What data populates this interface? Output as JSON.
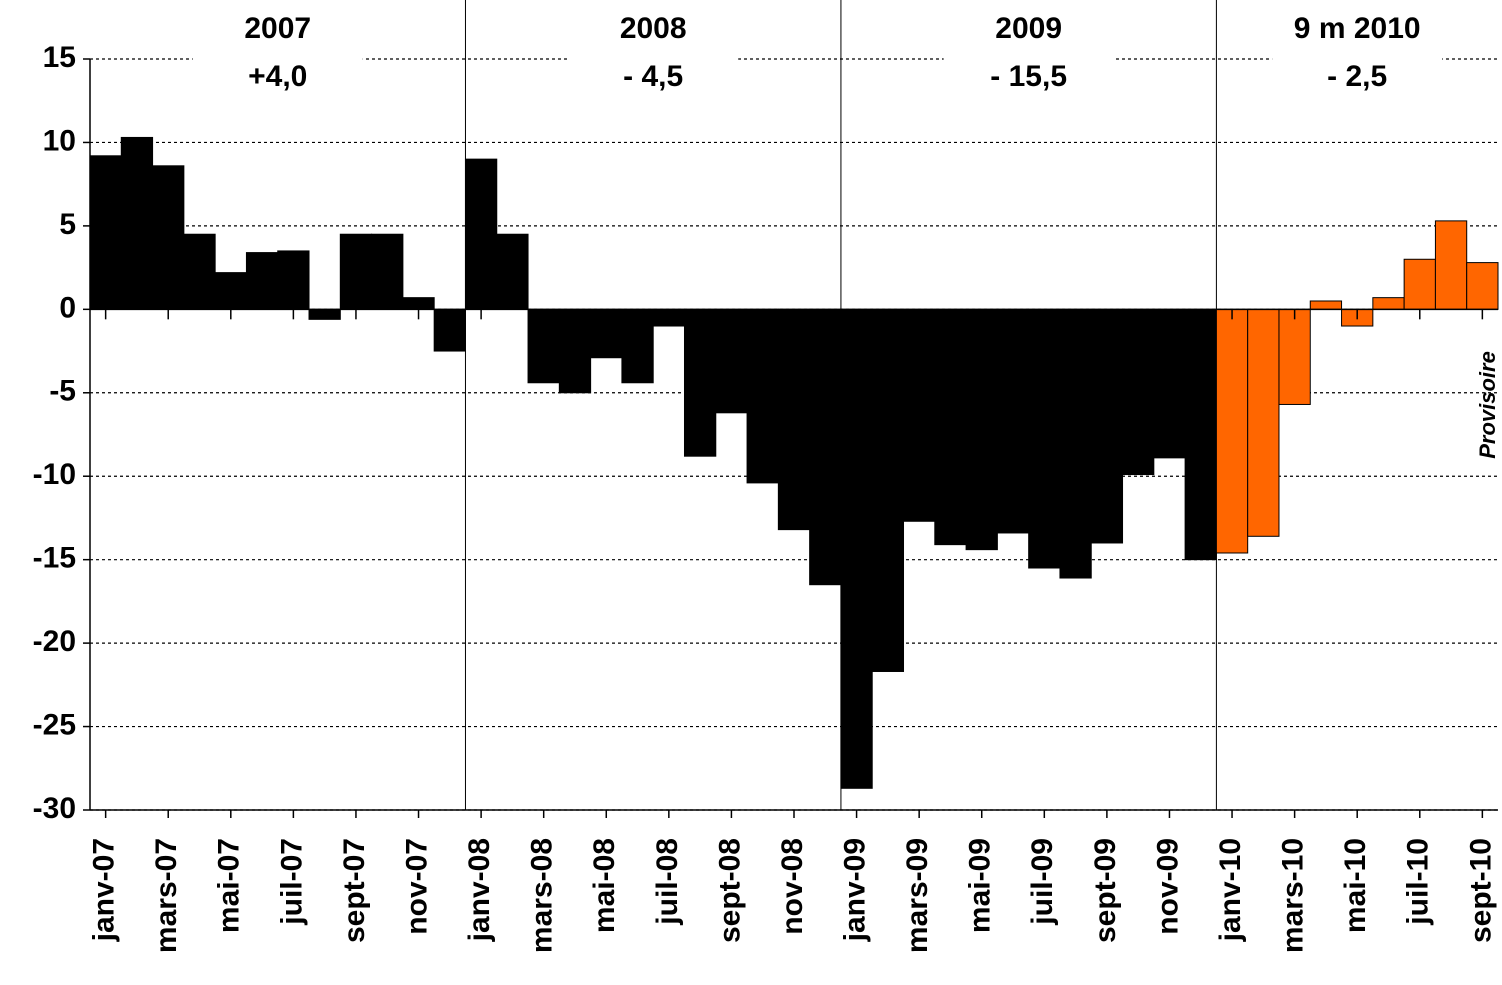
{
  "chart_data": {
    "type": "bar",
    "categories": [
      "janv-07",
      null,
      "mars-07",
      null,
      "mai-07",
      null,
      "juil-07",
      null,
      "sept-07",
      null,
      "nov-07",
      null,
      "janv-08",
      null,
      "mars-08",
      null,
      "mai-08",
      null,
      "juil-08",
      null,
      "sept-08",
      null,
      "nov-08",
      null,
      "janv-09",
      null,
      "mars-09",
      null,
      "mai-09",
      null,
      "juil-09",
      null,
      "sept-09",
      null,
      "nov-09",
      null,
      "janv-10",
      null,
      "mars-10",
      null,
      "mai-10",
      null,
      "juil-10",
      null,
      "sept-10"
    ],
    "values": [
      9.2,
      10.3,
      8.6,
      4.5,
      2.2,
      3.4,
      3.5,
      -0.6,
      4.5,
      4.5,
      0.7,
      -2.5,
      9.0,
      4.5,
      -4.4,
      -5.0,
      -2.9,
      -4.4,
      -1.0,
      -8.8,
      -6.2,
      -10.4,
      -13.2,
      -16.5,
      -28.7,
      -21.7,
      -12.7,
      -14.1,
      -14.4,
      -13.4,
      -15.5,
      -16.1,
      -14.0,
      -9.9,
      -8.9,
      -15.0,
      -14.6,
      -13.6,
      -5.7,
      0.5,
      -1.0,
      0.7,
      3.0,
      5.3,
      2.8
    ],
    "colors": [
      "#000000",
      "#000000",
      "#000000",
      "#000000",
      "#000000",
      "#000000",
      "#000000",
      "#000000",
      "#000000",
      "#000000",
      "#000000",
      "#000000",
      "#000000",
      "#000000",
      "#000000",
      "#000000",
      "#000000",
      "#000000",
      "#000000",
      "#000000",
      "#000000",
      "#000000",
      "#000000",
      "#000000",
      "#000000",
      "#000000",
      "#000000",
      "#000000",
      "#000000",
      "#000000",
      "#000000",
      "#000000",
      "#000000",
      "#000000",
      "#000000",
      "#000000",
      "#ff6600",
      "#ff6600",
      "#ff6600",
      "#ff6600",
      "#ff6600",
      "#ff6600",
      "#ff6600",
      "#ff6600",
      "#ff6600"
    ],
    "ylim": [
      -30,
      15
    ],
    "yticks": [
      -30,
      -25,
      -20,
      -15,
      -10,
      -5,
      0,
      5,
      10,
      15
    ],
    "grid": true,
    "annotations": [
      {
        "text": "2007",
        "sub": "+4,0"
      },
      {
        "text": "2008",
        "sub": "- 4,5"
      },
      {
        "text": "2009",
        "sub": "- 15,5"
      },
      {
        "text": "9 m 2010",
        "sub": "- 2,5"
      }
    ],
    "note": "Provisoire"
  }
}
